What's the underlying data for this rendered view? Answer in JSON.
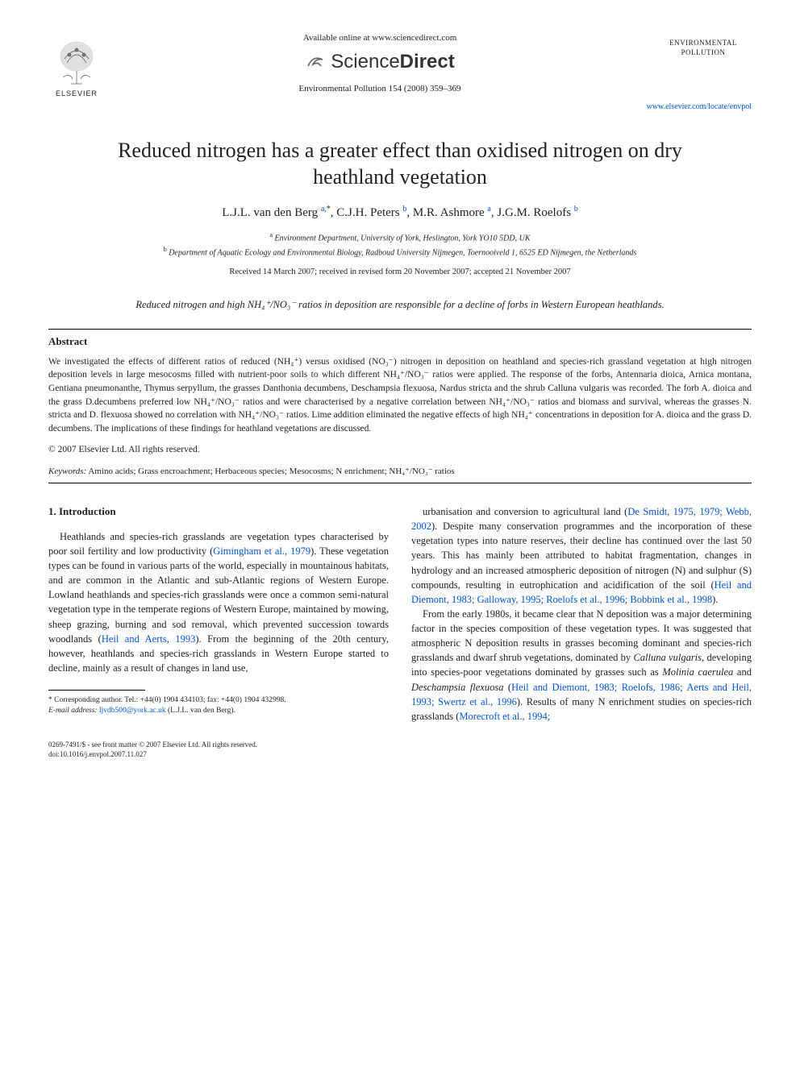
{
  "header": {
    "available_line": "Available online at www.sciencedirect.com",
    "sciencedirect": {
      "part1": "Science",
      "part2": "Direct"
    },
    "journal_ref": "Environmental Pollution 154 (2008) 359–369",
    "journal_name_line1": "ENVIRONMENTAL",
    "journal_name_line2": "POLLUTION",
    "elsevier": "ELSEVIER",
    "journal_link": "www.elsevier.com/locate/envpol"
  },
  "title": "Reduced nitrogen has a greater effect than oxidised nitrogen on dry heathland vegetation",
  "authors_html": "L.J.L. van den Berg <sup class='link'>a,</sup><sup>*</sup>, C.J.H. Peters <sup class='link'>b</sup>, M.R. Ashmore <sup class='link'>a</sup>, J.G.M. Roelofs <sup class='link'>b</sup>",
  "affiliations": {
    "a": "Environment Department, University of York, Heslington, York YO10 5DD, UK",
    "b": "Department of Aquatic Ecology and Environmental Biology, Radboud University Nijmegen, Toernooiveld 1, 6525 ED Nijmegen, the Netherlands"
  },
  "dates": "Received 14 March 2007; received in revised form 20 November 2007; accepted 21 November 2007",
  "highlight": "Reduced nitrogen and high NH₄⁺/NO₃⁻ ratios in deposition are responsible for a decline of forbs in Western European heathlands.",
  "abstract": {
    "heading": "Abstract",
    "text": "We investigated the effects of different ratios of reduced (NH₄⁺) versus oxidised (NO₃⁻) nitrogen in deposition on heathland and species-rich grassland vegetation at high nitrogen deposition levels in large mesocosms filled with nutrient-poor soils to which different NH₄⁺/NO₃⁻ ratios were applied. The response of the forbs, Antennaria dioica, Arnica montana, Gentiana pneumonanthe, Thymus serpyllum, the grasses Danthonia decumbens, Deschampsia flexuosa, Nardus stricta and the shrub Calluna vulgaris was recorded. The forb A. dioica and the grass D.decumbens preferred low NH₄⁺/NO₃⁻ ratios and were characterised by a negative correlation between NH₄⁺/NO₃⁻ ratios and biomass and survival, whereas the grasses N. stricta and D. flexuosa showed no correlation with NH₄⁺/NO₃⁻ ratios. Lime addition eliminated the negative effects of high NH₄⁺ concentrations in deposition for A. dioica and the grass D. decumbens. The implications of these findings for heathland vegetations are discussed.",
    "copyright": "© 2007 Elsevier Ltd. All rights reserved."
  },
  "keywords": {
    "label": "Keywords:",
    "text": "Amino acids; Grass encroachment; Herbaceous species; Mesocosms; N enrichment; NH₄⁺/NO₃⁻ ratios"
  },
  "intro": {
    "heading": "1. Introduction",
    "p1": "Heathlands and species-rich grasslands are vegetation types characterised by poor soil fertility and low productivity (Gimingham et al., 1979). These vegetation types can be found in various parts of the world, especially in mountainous habitats, and are common in the Atlantic and sub-Atlantic regions of Western Europe. Lowland heathlands and species-rich grasslands were once a common semi-natural vegetation type in the temperate regions of Western Europe, maintained by mowing, sheep grazing, burning and sod removal, which prevented succession towards woodlands (Heil and Aerts, 1993). From the beginning of the 20th century, however, heathlands and species-rich grasslands in Western Europe started to decline, mainly as a result of changes in land use,",
    "p2": "urbanisation and conversion to agricultural land (De Smidt, 1975, 1979; Webb, 2002). Despite many conservation programmes and the incorporation of these vegetation types into nature reserves, their decline has continued over the last 50 years. This has mainly been attributed to habitat fragmentation, changes in hydrology and an increased atmospheric deposition of nitrogen (N) and sulphur (S) compounds, resulting in eutrophication and acidification of the soil (Heil and Diemont, 1983; Galloway, 1995; Roelofs et al., 1996; Bobbink et al., 1998).",
    "p3": "From the early 1980s, it became clear that N deposition was a major determining factor in the species composition of these vegetation types. It was suggested that atmospheric N deposition results in grasses becoming dominant and species-rich grasslands and dwarf shrub vegetations, dominated by Calluna vulgaris, developing into species-poor vegetations dominated by grasses such as Molinia caerulea and Deschampsia flexuosa (Heil and Diemont, 1983; Roelofs, 1986; Aerts and Heil, 1993; Swertz et al., 1996). Results of many N enrichment studies on species-rich grasslands (Morecroft et al., 1994;"
  },
  "footnote": {
    "corresponding": "* Corresponding author. Tel.: +44(0) 1904 434103; fax: +44(0) 1904 432998.",
    "email_label": "E-mail address:",
    "email": "ljvdb500@york.ac.uk",
    "email_suffix": "(L.J.L. van den Berg)."
  },
  "bottom": {
    "line1": "0269-7491/$ - see front matter © 2007 Elsevier Ltd. All rights reserved.",
    "line2": "doi:10.1016/j.envpol.2007.11.027"
  },
  "colors": {
    "link": "#0055cc",
    "text": "#222222",
    "rule": "#000000"
  }
}
